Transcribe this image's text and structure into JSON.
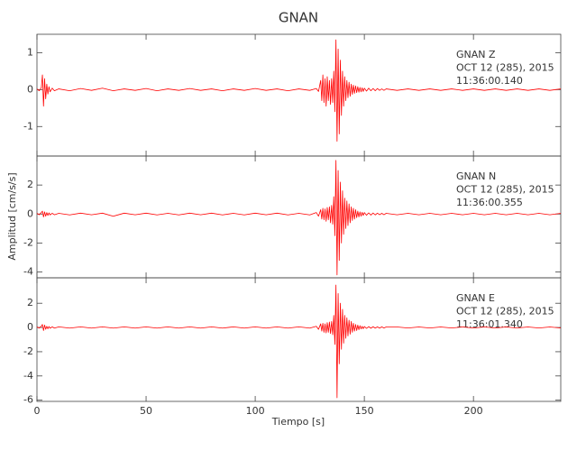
{
  "figure": {
    "title": "GNAN",
    "x_label": "Tiempo [s]",
    "y_label": "Amplitud [cm/s/s]"
  },
  "chart_data": [
    {
      "type": "line",
      "annotation": [
        "GNAN   Z",
        "OCT 12 (285), 2015",
        "11:36:00.140"
      ],
      "xlim": [
        0,
        240
      ],
      "xticks": [
        0,
        50,
        100,
        150,
        200
      ],
      "ylim": [
        -1.8,
        1.5
      ],
      "yticks": [
        -1,
        0,
        1
      ],
      "x": [
        0,
        1,
        2,
        2.5,
        3,
        3.5,
        4,
        4.5,
        5,
        5.5,
        6,
        7,
        8,
        10,
        15,
        20,
        25,
        30,
        35,
        40,
        45,
        50,
        55,
        60,
        65,
        70,
        75,
        80,
        85,
        90,
        95,
        100,
        105,
        110,
        115,
        120,
        125,
        128,
        129,
        130,
        130.5,
        131,
        131.5,
        132,
        132.5,
        133,
        133.5,
        134,
        134.5,
        135,
        135.5,
        136,
        136.5,
        137,
        137.5,
        138,
        138.5,
        139,
        139.5,
        140,
        140.5,
        141,
        141.5,
        142,
        142.5,
        143,
        143.5,
        144,
        144.5,
        145,
        145.5,
        146,
        146.5,
        147,
        147.5,
        148,
        148.5,
        149,
        149.5,
        150,
        151,
        152,
        153,
        154,
        155,
        156,
        157,
        158,
        159,
        160,
        165,
        170,
        175,
        180,
        185,
        190,
        195,
        200,
        205,
        210,
        215,
        220,
        225,
        230,
        235,
        240
      ],
      "series": [
        {
          "color": "#ff0000",
          "values": [
            0.02,
            -0.03,
            0.05,
            0.4,
            -0.45,
            0.3,
            -0.25,
            0.15,
            -0.12,
            0.08,
            -0.06,
            0.04,
            -0.03,
            0.02,
            -0.03,
            0.03,
            -0.02,
            0.04,
            -0.03,
            0.02,
            -0.02,
            0.03,
            -0.03,
            0.02,
            -0.02,
            0.03,
            -0.02,
            0.02,
            -0.03,
            0.02,
            -0.02,
            0.03,
            -0.02,
            0.02,
            -0.03,
            0.02,
            -0.02,
            0.03,
            -0.05,
            0.25,
            -0.3,
            0.4,
            -0.35,
            0.3,
            -0.45,
            0.35,
            -0.3,
            0.25,
            -0.4,
            0.3,
            -0.35,
            0.5,
            -0.6,
            1.35,
            -1.4,
            1.1,
            -1.2,
            0.8,
            -0.7,
            0.5,
            -0.45,
            0.35,
            -0.3,
            0.25,
            -0.22,
            0.2,
            -0.18,
            0.15,
            -0.13,
            0.12,
            -0.1,
            0.1,
            -0.08,
            0.08,
            -0.07,
            0.06,
            -0.06,
            0.05,
            -0.05,
            0.04,
            -0.04,
            0.04,
            -0.03,
            0.03,
            -0.03,
            0.03,
            -0.02,
            0.02,
            -0.02,
            0.02,
            -0.02,
            0.02,
            -0.02,
            0.02,
            -0.02,
            0.02,
            -0.02,
            0.02,
            -0.02,
            0.02,
            -0.02,
            0.02,
            -0.02,
            0.02,
            -0.02,
            0.02
          ]
        }
      ]
    },
    {
      "type": "line",
      "annotation": [
        "GNAN   N",
        "OCT 12 (285), 2015",
        "11:36:00.355"
      ],
      "xlim": [
        0,
        240
      ],
      "xticks": [
        0,
        50,
        100,
        150,
        200
      ],
      "ylim": [
        -4.4,
        4
      ],
      "yticks": [
        -4,
        -2,
        0,
        2
      ],
      "x": [
        0,
        1,
        2,
        2.5,
        3,
        3.5,
        4,
        4.5,
        5,
        5.5,
        6,
        7,
        8,
        10,
        15,
        20,
        25,
        30,
        35,
        40,
        45,
        50,
        55,
        60,
        65,
        70,
        75,
        80,
        85,
        90,
        95,
        100,
        105,
        110,
        115,
        120,
        125,
        128,
        129,
        130,
        130.5,
        131,
        131.5,
        132,
        132.5,
        133,
        133.5,
        134,
        134.5,
        135,
        135.5,
        136,
        136.5,
        137,
        137.5,
        138,
        138.5,
        139,
        139.5,
        140,
        140.5,
        141,
        141.5,
        142,
        142.5,
        143,
        143.5,
        144,
        144.5,
        145,
        145.5,
        146,
        146.5,
        147,
        147.5,
        148,
        148.5,
        149,
        149.5,
        150,
        151,
        152,
        153,
        154,
        155,
        156,
        157,
        158,
        159,
        160,
        165,
        170,
        175,
        180,
        185,
        190,
        195,
        200,
        205,
        210,
        215,
        220,
        225,
        230,
        235,
        240
      ],
      "series": [
        {
          "color": "#ff0000",
          "values": [
            0.05,
            -0.05,
            0.1,
            0.2,
            -0.2,
            0.15,
            -0.15,
            0.1,
            -0.1,
            0.08,
            -0.06,
            0.05,
            -0.05,
            0.05,
            -0.06,
            0.06,
            -0.05,
            0.06,
            -0.15,
            0.06,
            -0.05,
            0.06,
            -0.06,
            0.05,
            -0.06,
            0.06,
            -0.05,
            0.06,
            -0.06,
            0.05,
            -0.06,
            0.06,
            -0.05,
            0.06,
            -0.06,
            0.05,
            -0.06,
            0.1,
            -0.15,
            0.3,
            -0.35,
            0.4,
            -0.4,
            0.35,
            -0.5,
            0.45,
            -0.4,
            0.5,
            -0.6,
            0.6,
            -0.7,
            1.2,
            -1.5,
            3.7,
            -4.2,
            3.0,
            -3.2,
            2.2,
            -2.0,
            1.6,
            -1.4,
            1.1,
            -1.0,
            0.9,
            -0.8,
            0.7,
            -0.6,
            0.5,
            -0.45,
            0.4,
            -0.35,
            0.3,
            -0.25,
            0.2,
            -0.2,
            0.15,
            -0.15,
            0.12,
            -0.1,
            0.1,
            -0.08,
            0.08,
            -0.07,
            0.07,
            -0.06,
            0.06,
            -0.05,
            0.05,
            -0.05,
            0.05,
            -0.05,
            0.05,
            -0.05,
            0.05,
            -0.05,
            0.05,
            -0.05,
            0.05,
            -0.05,
            0.05,
            -0.05,
            0.05,
            -0.05,
            0.05,
            -0.05,
            0.05
          ]
        }
      ]
    },
    {
      "type": "line",
      "annotation": [
        "GNAN   E",
        "OCT 12 (285), 2015",
        "11:36:01.340"
      ],
      "xlim": [
        0,
        240
      ],
      "xticks": [
        0,
        50,
        100,
        150,
        200
      ],
      "ylim": [
        -6.1,
        4.1
      ],
      "yticks": [
        -6,
        -4,
        -2,
        0,
        2
      ],
      "x": [
        0,
        1,
        2,
        2.5,
        3,
        3.5,
        4,
        4.5,
        5,
        5.5,
        6,
        7,
        8,
        10,
        15,
        20,
        25,
        30,
        35,
        40,
        45,
        50,
        55,
        60,
        65,
        70,
        75,
        80,
        85,
        90,
        95,
        100,
        105,
        110,
        115,
        120,
        125,
        128,
        129,
        130,
        130.5,
        131,
        131.5,
        132,
        132.5,
        133,
        133.5,
        134,
        134.5,
        135,
        135.5,
        136,
        136.5,
        137,
        137.5,
        138,
        138.5,
        139,
        139.5,
        140,
        140.5,
        141,
        141.5,
        142,
        142.5,
        143,
        143.5,
        144,
        144.5,
        145,
        145.5,
        146,
        146.5,
        147,
        147.5,
        148,
        148.5,
        149,
        149.5,
        150,
        151,
        152,
        153,
        154,
        155,
        156,
        157,
        158,
        159,
        160,
        165,
        170,
        175,
        180,
        185,
        190,
        195,
        200,
        205,
        210,
        215,
        220,
        225,
        230,
        235,
        240
      ],
      "series": [
        {
          "color": "#ff0000",
          "values": [
            0.05,
            -0.05,
            0.1,
            0.25,
            -0.25,
            0.2,
            -0.15,
            0.1,
            -0.1,
            0.08,
            -0.06,
            0.05,
            -0.05,
            0.05,
            -0.05,
            0.05,
            -0.05,
            0.05,
            -0.05,
            0.05,
            -0.05,
            0.05,
            -0.05,
            0.05,
            -0.05,
            0.05,
            -0.05,
            0.05,
            -0.05,
            0.05,
            -0.05,
            0.05,
            -0.05,
            0.05,
            -0.05,
            0.05,
            -0.05,
            0.1,
            -0.15,
            0.3,
            -0.3,
            0.35,
            -0.4,
            0.3,
            -0.45,
            0.4,
            -0.4,
            0.45,
            -0.5,
            0.5,
            -0.6,
            1.0,
            -1.4,
            3.5,
            -5.8,
            2.8,
            -3.0,
            2.0,
            -1.8,
            1.5,
            -1.3,
            1.0,
            -0.9,
            0.8,
            -0.7,
            0.6,
            -0.55,
            0.5,
            -0.4,
            0.35,
            -0.3,
            0.25,
            -0.25,
            0.2,
            -0.18,
            0.15,
            -0.12,
            0.1,
            -0.1,
            0.08,
            -0.07,
            0.07,
            -0.06,
            0.06,
            -0.05,
            0.05,
            -0.05,
            0.05,
            -0.04,
            0.04,
            0.04,
            -0.04,
            0.04,
            -0.04,
            0.04,
            -0.04,
            0.04,
            -0.04,
            0.04,
            -0.04,
            0.04,
            -0.04,
            0.04,
            -0.04,
            0.04,
            -0.04
          ]
        }
      ]
    }
  ]
}
